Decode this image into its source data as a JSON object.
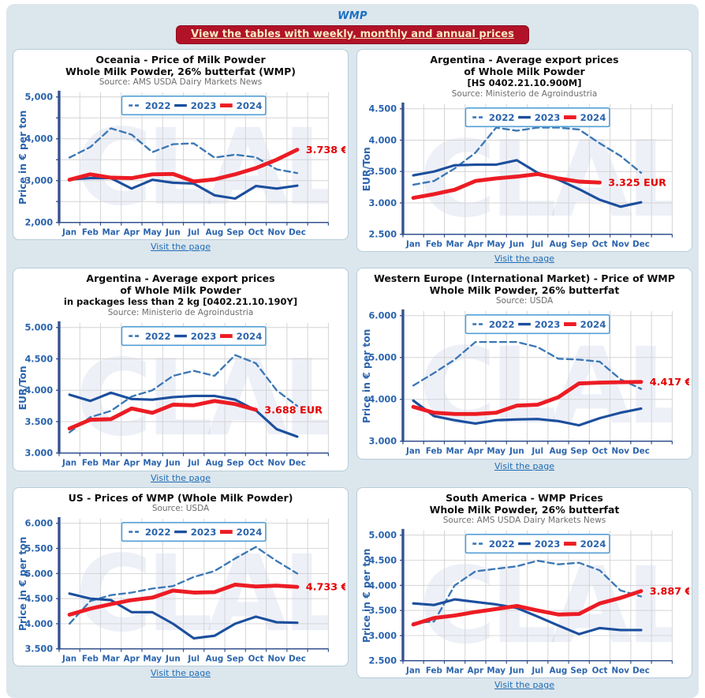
{
  "header": {
    "title": "WMP",
    "banner_label": "View the tables with weekly, monthly and annual prices"
  },
  "visit_link_label": "Visit the page",
  "watermark_text": "CLAL",
  "months": [
    "Jan",
    "Feb",
    "Mar",
    "Apr",
    "May",
    "Jun",
    "Jul",
    "Aug",
    "Sep",
    "Oct",
    "Nov",
    "Dec"
  ],
  "legend_labels": [
    "2022",
    "2023",
    "2024"
  ],
  "colors": {
    "page_background": "#dce6ed",
    "panel_border": "#b7cdd9",
    "banner_background": "#b11228",
    "banner_text": "#f6edc3",
    "page_title_blue": "#1b6fc0",
    "link_blue": "#1f6db6",
    "axis_text": "#2b64ad",
    "axis_line": "#33518f",
    "grid": "#d4d4d4",
    "legend_border": "#54a0d6",
    "value_label": "#e50000",
    "watermark": "#2b3ba0",
    "series": {
      "2022": "#3b78b5",
      "2023": "#1c4f9e",
      "2024": "#ec1c24"
    }
  },
  "chart_data": [
    {
      "type": "line",
      "region": "Oceania",
      "title_lines": [
        "Oceania - Price of Milk Powder",
        "Whole Milk Powder, 26% butterfat (WMP)"
      ],
      "source": "Source: AMS USDA Dairy Markets News",
      "ylabel": "Price in € per ton",
      "ylim": [
        2000,
        5000
      ],
      "y_label_step": 1000,
      "y_grid_step": 500,
      "thousands_separator": ",",
      "value_label": "3.738 €",
      "series": [
        {
          "name": "2022",
          "style": "dashed",
          "values": [
            3550,
            3800,
            4250,
            4100,
            3680,
            3870,
            3890,
            3550,
            3620,
            3560,
            3270,
            3180
          ]
        },
        {
          "name": "2023",
          "style": "solid",
          "values": [
            3030,
            3060,
            3060,
            2810,
            3020,
            2950,
            2930,
            2650,
            2570,
            2870,
            2810,
            2880
          ]
        },
        {
          "name": "2024",
          "style": "thick",
          "values": [
            3020,
            3150,
            3070,
            3060,
            3150,
            3160,
            2980,
            3030,
            3150,
            3300,
            3500,
            3738
          ]
        }
      ]
    },
    {
      "type": "line",
      "region": "Argentina",
      "title_lines": [
        "Argentina - Average export prices",
        "of Whole Milk Powder",
        "[HS 0402.21.10.900M]"
      ],
      "source": "Source: Ministerio de Agroindustria",
      "ylabel": "EUR/Ton",
      "ylim": [
        2500,
        4500
      ],
      "y_label_step": 500,
      "y_grid_step": 500,
      "thousands_separator": ".",
      "value_label": "3.325 EUR",
      "series": [
        {
          "name": "2022",
          "style": "dashed",
          "values": [
            3290,
            3350,
            3550,
            3800,
            4200,
            4150,
            4200,
            4200,
            4170,
            3950,
            3750,
            3480
          ]
        },
        {
          "name": "2023",
          "style": "solid",
          "values": [
            3440,
            3500,
            3600,
            3610,
            3610,
            3680,
            3480,
            3370,
            3220,
            3050,
            2940,
            3010
          ]
        },
        {
          "name": "2024",
          "style": "thick",
          "values": [
            3080,
            3140,
            3210,
            3350,
            3390,
            3420,
            3460,
            3390,
            3340,
            3325
          ]
        }
      ]
    },
    {
      "type": "line",
      "region": "Argentina (packages < 2 kg)",
      "title_lines": [
        "Argentina - Average export prices",
        "of Whole Milk Powder",
        "in packages less than 2 kg [0402.21.10.190Y]"
      ],
      "source": "Source: Ministerio de Agroindustria",
      "ylabel": "EUR/Ton",
      "ylim": [
        3000,
        5000
      ],
      "y_label_step": 500,
      "y_grid_step": 500,
      "thousands_separator": ".",
      "value_label": "3.688 EUR",
      "series": [
        {
          "name": "2022",
          "style": "dashed",
          "values": [
            3330,
            3570,
            3670,
            3900,
            4000,
            4230,
            4310,
            4230,
            4560,
            4430,
            4000,
            3750
          ]
        },
        {
          "name": "2023",
          "style": "solid",
          "values": [
            3930,
            3830,
            3960,
            3860,
            3850,
            3890,
            3910,
            3910,
            3850,
            3680,
            3380,
            3260
          ]
        },
        {
          "name": "2024",
          "style": "thick",
          "values": [
            3390,
            3530,
            3540,
            3710,
            3640,
            3770,
            3760,
            3830,
            3780,
            3688
          ]
        }
      ]
    },
    {
      "type": "line",
      "region": "Western Europe",
      "title_lines": [
        "Western Europe (International Market) - Price of WMP",
        "Whole Milk Powder, 26% butterfat"
      ],
      "source": "Source: USDA",
      "ylabel": "Price in € per ton",
      "ylim": [
        3000,
        6000
      ],
      "y_label_step": 1000,
      "y_grid_step": 1000,
      "thousands_separator": ".",
      "value_label": "4.417 €",
      "series": [
        {
          "name": "2022",
          "style": "dashed",
          "values": [
            4330,
            4630,
            4950,
            5370,
            5370,
            5370,
            5250,
            4970,
            4950,
            4900,
            4480,
            4250
          ]
        },
        {
          "name": "2023",
          "style": "solid",
          "values": [
            3970,
            3600,
            3500,
            3420,
            3500,
            3520,
            3530,
            3480,
            3380,
            3550,
            3680,
            3780
          ]
        },
        {
          "name": "2024",
          "style": "thick",
          "values": [
            3820,
            3680,
            3650,
            3650,
            3680,
            3850,
            3870,
            4050,
            4380,
            4400,
            4410,
            4417
          ]
        }
      ]
    },
    {
      "type": "line",
      "region": "US",
      "title_lines": [
        "US - Prices of WMP (Whole Milk Powder)"
      ],
      "source": "Source: USDA",
      "ylabel": "Price in € per ton",
      "ylim": [
        3500,
        6000
      ],
      "y_label_step": 500,
      "y_grid_step": 500,
      "thousands_separator": ".",
      "value_label": "4.733 €",
      "series": [
        {
          "name": "2022",
          "style": "dashed",
          "values": [
            4000,
            4450,
            4570,
            4620,
            4700,
            4750,
            4930,
            5050,
            5300,
            5530,
            5250,
            5000
          ]
        },
        {
          "name": "2023",
          "style": "solid",
          "values": [
            4600,
            4500,
            4470,
            4230,
            4230,
            4000,
            3710,
            3760,
            4000,
            4140,
            4030,
            4020
          ]
        },
        {
          "name": "2024",
          "style": "thick",
          "values": [
            4180,
            4300,
            4390,
            4470,
            4520,
            4660,
            4620,
            4630,
            4780,
            4740,
            4760,
            4733
          ]
        }
      ]
    },
    {
      "type": "line",
      "region": "South America",
      "title_lines": [
        "South America - WMP Prices",
        "Whole Milk Powder, 26% butterfat"
      ],
      "source": "Source: AMS USDA Dairy Markets News",
      "ylabel": "Price in € per ton",
      "ylim": [
        2500,
        5000
      ],
      "y_label_step": 500,
      "y_grid_step": 500,
      "thousands_separator": ".",
      "value_label": "3.887 €",
      "series": [
        {
          "name": "2022",
          "style": "dashed",
          "values": [
            3250,
            3280,
            4000,
            4280,
            4330,
            4380,
            4490,
            4420,
            4450,
            4300,
            3900,
            3780
          ]
        },
        {
          "name": "2023",
          "style": "solid",
          "values": [
            3640,
            3610,
            3720,
            3670,
            3620,
            3550,
            3380,
            3200,
            3030,
            3150,
            3110,
            3110
          ]
        },
        {
          "name": "2024",
          "style": "thick",
          "values": [
            3220,
            3350,
            3400,
            3470,
            3530,
            3590,
            3500,
            3420,
            3430,
            3640,
            3750,
            3887
          ]
        }
      ]
    }
  ]
}
